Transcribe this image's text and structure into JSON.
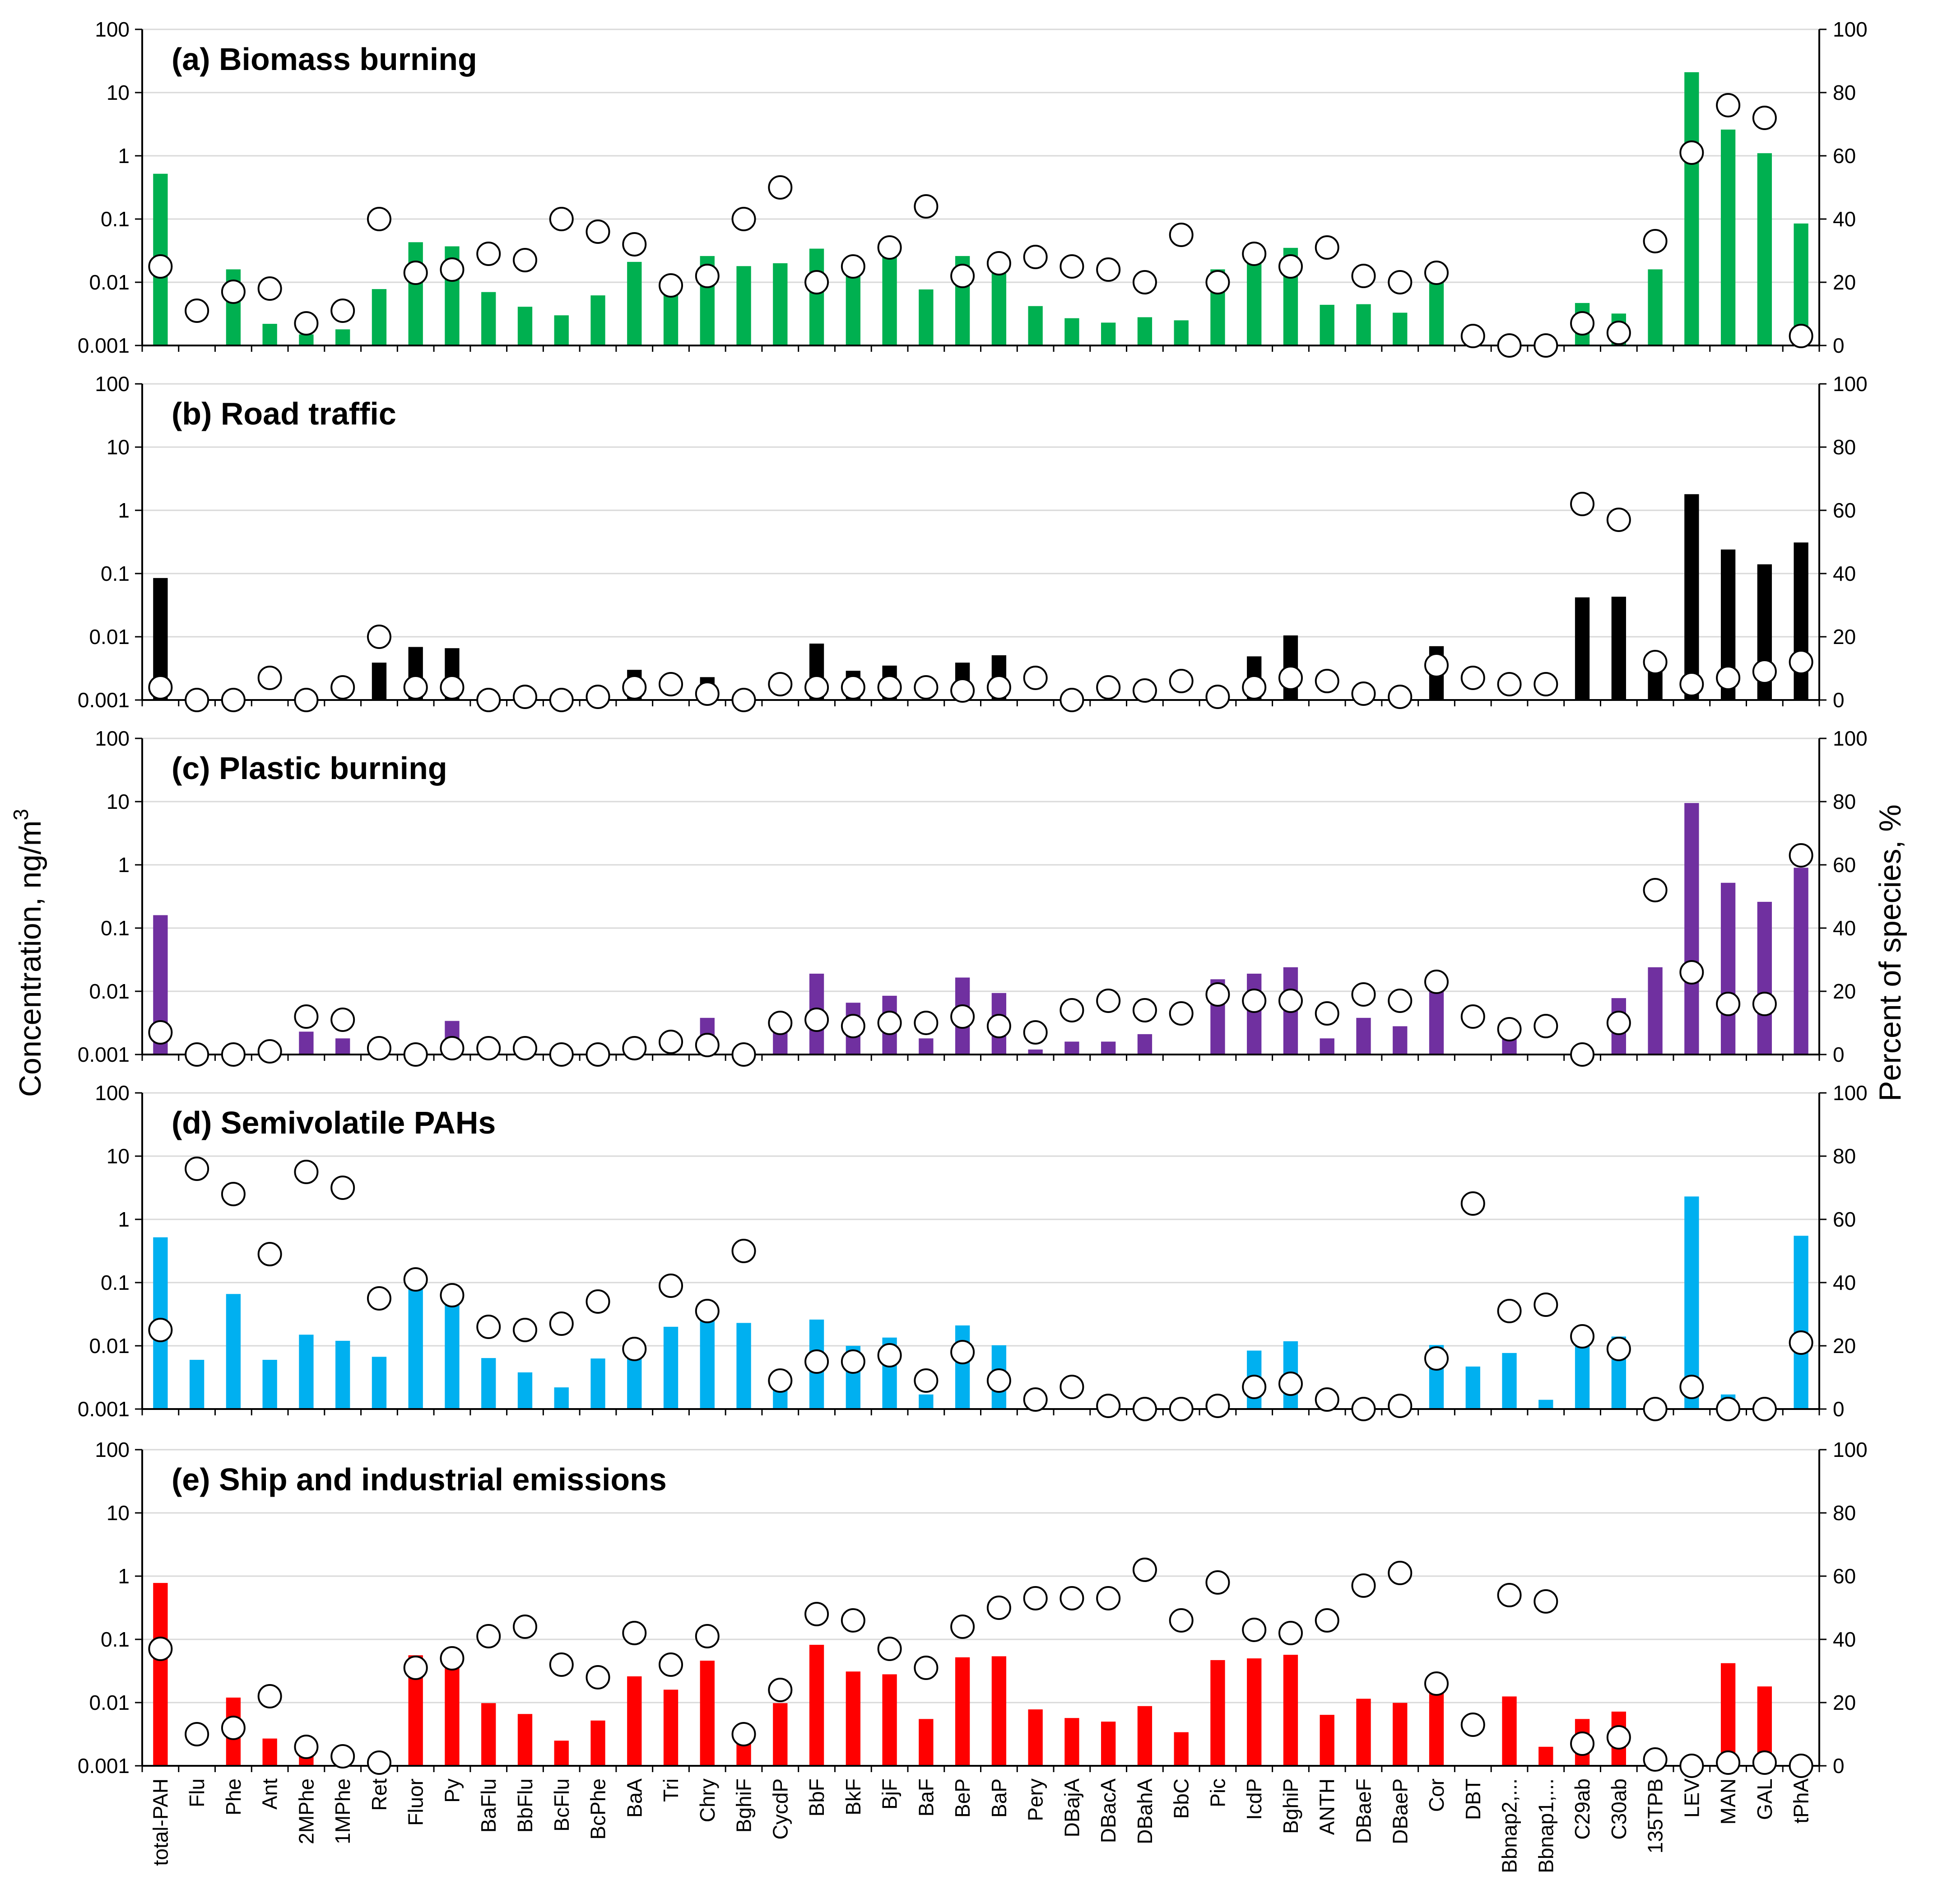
{
  "figure": {
    "ylabel_left": "Concentration, ng/m",
    "ylabel_left_superscript": "3",
    "ylabel_right": "Percent of species, %"
  },
  "chart_data": {
    "type": "bar",
    "combined_with": "scatter",
    "categories": [
      "total-PAH",
      "Flu",
      "Phe",
      "Ant",
      "2MPhe",
      "1MPhe",
      "Ret",
      "Fluor",
      "Py",
      "BaFlu",
      "BbFlu",
      "BcFlu",
      "BcPhe",
      "BaA",
      "Tri",
      "Chry",
      "BghiF",
      "CycdP",
      "BbF",
      "BkF",
      "BjF",
      "BaF",
      "BeP",
      "BaP",
      "Pery",
      "DBajA",
      "DBacA",
      "DBahA",
      "BbC",
      "Pic",
      "IcdP",
      "BghiP",
      "ANTH",
      "DBaeF",
      "DBaeP",
      "Cor",
      "DBT",
      "Bbnap2,...",
      "Bbnap1,...",
      "C29ab",
      "C30ab",
      "135TPB",
      "LEV",
      "MAN",
      "GAL",
      "tPhA"
    ],
    "left_axis": {
      "label": "Concentration, ng/m3",
      "scale": "log",
      "ylim": [
        0.001,
        100
      ],
      "ticks": [
        "0.001",
        "0.01",
        "0.1",
        "1",
        "10",
        "100"
      ]
    },
    "right_axis": {
      "label": "Percent of species, %",
      "scale": "linear",
      "ylim": [
        0,
        100
      ],
      "ticks": [
        "0",
        "20",
        "40",
        "60",
        "80",
        "100"
      ]
    },
    "panels": [
      {
        "title": "(a) Biomass burning",
        "bar_color": "#00b050",
        "concentration": [
          0.52,
          null,
          0.016,
          0.0022,
          0.0015,
          0.0018,
          0.0078,
          0.043,
          0.037,
          0.007,
          0.0041,
          0.003,
          0.0062,
          0.021,
          0.007,
          0.026,
          0.018,
          0.02,
          0.034,
          0.016,
          0.03,
          0.0077,
          0.026,
          0.02,
          0.0042,
          0.0027,
          0.0023,
          0.0028,
          0.0025,
          0.016,
          0.024,
          0.035,
          0.0044,
          0.0045,
          0.0033,
          0.011,
          null,
          null,
          null,
          0.0047,
          0.0032,
          0.016,
          21,
          2.6,
          1.1,
          0.085
        ],
        "percent": [
          25,
          11,
          17,
          18,
          7,
          11,
          40,
          23,
          24,
          29,
          27,
          40,
          36,
          32,
          19,
          22,
          40,
          50,
          20,
          25,
          31,
          44,
          22,
          26,
          28,
          25,
          24,
          20,
          35,
          20,
          29,
          25,
          31,
          22,
          20,
          23,
          3,
          0,
          0,
          7,
          4,
          33,
          61,
          76,
          72,
          3
        ]
      },
      {
        "title": "(b) Road traffic",
        "bar_color": "#000000",
        "concentration": [
          0.085,
          null,
          null,
          null,
          null,
          null,
          0.0039,
          0.0069,
          0.0066,
          null,
          null,
          null,
          null,
          0.003,
          null,
          0.0023,
          null,
          null,
          0.0078,
          0.0029,
          0.0035,
          null,
          0.0039,
          0.0051,
          null,
          null,
          null,
          null,
          null,
          null,
          0.0049,
          0.0105,
          null,
          null,
          null,
          0.0071,
          null,
          null,
          null,
          0.042,
          0.043,
          0.0036,
          1.8,
          0.24,
          0.14,
          0.31
        ],
        "percent": [
          4,
          0,
          0,
          7,
          0,
          4,
          20,
          4,
          4,
          0,
          1,
          0,
          1,
          4,
          5,
          2,
          0,
          5,
          4,
          4,
          4,
          4,
          3,
          4,
          7,
          0,
          4,
          3,
          6,
          1,
          4,
          7,
          6,
          2,
          1,
          11,
          7,
          5,
          5,
          62,
          57,
          12,
          5,
          7,
          9,
          12
        ]
      },
      {
        "title": "(c) Plastic burning",
        "bar_color": "#7030a0",
        "concentration": [
          0.16,
          null,
          null,
          null,
          0.0023,
          0.0018,
          null,
          null,
          0.0034,
          null,
          null,
          null,
          null,
          null,
          null,
          0.0038,
          null,
          0.0023,
          0.019,
          0.0066,
          0.0085,
          0.0018,
          0.0165,
          0.0094,
          0.0012,
          0.0016,
          0.0016,
          0.0021,
          null,
          0.0155,
          0.019,
          0.024,
          0.0018,
          0.0038,
          0.0028,
          0.0125,
          null,
          0.002,
          null,
          null,
          0.0078,
          0.024,
          9.5,
          0.52,
          0.26,
          0.9
        ],
        "percent": [
          7,
          0,
          0,
          1,
          12,
          11,
          2,
          0,
          2,
          2,
          2,
          0,
          0,
          2,
          4,
          3,
          0,
          10,
          11,
          9,
          10,
          10,
          12,
          9,
          7,
          14,
          17,
          14,
          13,
          19,
          17,
          17,
          13,
          19,
          17,
          23,
          12,
          8,
          9,
          0,
          10,
          52,
          26,
          16,
          16,
          63
        ]
      },
      {
        "title": "(d) Semivolatile PAHs",
        "bar_color": "#00b0f0",
        "concentration": [
          0.52,
          0.006,
          0.066,
          0.006,
          0.015,
          0.012,
          0.0067,
          0.09,
          0.045,
          0.0064,
          0.0038,
          0.0022,
          0.0063,
          0.0077,
          0.02,
          0.027,
          0.023,
          0.0022,
          0.026,
          0.01,
          0.0135,
          0.0017,
          0.021,
          0.0102,
          null,
          null,
          null,
          null,
          null,
          null,
          0.0084,
          0.0118,
          null,
          null,
          null,
          0.0103,
          0.0047,
          0.0077,
          0.0014,
          0.017,
          0.014,
          null,
          2.3,
          0.0017,
          null,
          0.55
        ],
        "percent": [
          25,
          76,
          68,
          49,
          75,
          70,
          35,
          41,
          36,
          26,
          25,
          27,
          34,
          19,
          39,
          31,
          50,
          9,
          15,
          15,
          17,
          9,
          18,
          9,
          3,
          7,
          1,
          0,
          0,
          1,
          7,
          8,
          3,
          0,
          1,
          16,
          65,
          31,
          33,
          23,
          19,
          0,
          7,
          0,
          0,
          21
        ]
      },
      {
        "title": "(e) Ship and industrial emissions",
        "bar_color": "#ff0000",
        "concentration": [
          0.78,
          null,
          0.012,
          0.0027,
          0.0015,
          null,
          null,
          0.056,
          0.035,
          0.0098,
          0.0066,
          0.0025,
          0.0052,
          0.026,
          0.016,
          0.046,
          0.0044,
          0.0098,
          0.082,
          0.031,
          0.028,
          0.0055,
          0.052,
          0.054,
          0.0078,
          0.0057,
          0.005,
          0.0088,
          0.0034,
          0.047,
          0.05,
          0.057,
          0.0064,
          0.0115,
          0.0099,
          0.0155,
          null,
          0.0125,
          0.002,
          0.0055,
          0.0072,
          null,
          null,
          0.042,
          0.018,
          null
        ],
        "percent": [
          37,
          10,
          12,
          22,
          6,
          3,
          1,
          31,
          34,
          41,
          44,
          32,
          28,
          42,
          32,
          41,
          10,
          24,
          48,
          46,
          37,
          31,
          44,
          50,
          53,
          53,
          53,
          62,
          46,
          58,
          43,
          42,
          46,
          57,
          61,
          26,
          13,
          54,
          52,
          7,
          9,
          2,
          0,
          1,
          1,
          0
        ]
      }
    ]
  }
}
